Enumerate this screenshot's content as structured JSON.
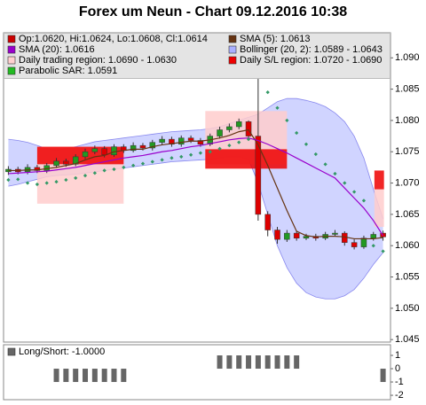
{
  "chart_data": [
    {
      "type": "candlestick",
      "title": "Forex um Neun - Chart 09.12.2016 10:38",
      "legend": [
        {
          "label": "Op:1.0620, Hi:1.0624, Lo:1.0608, Cl:1.0614",
          "color": "#cc0000"
        },
        {
          "label": "SMA (5): 1.0613",
          "color": "#663311"
        },
        {
          "label": "SMA (20): 1.0616",
          "color": "#9900cc"
        },
        {
          "label": "Bollinger (20, 2): 1.0589 - 1.0643",
          "color": "#aab0ff"
        },
        {
          "label": "Daily trading region: 1.0690 - 1.0630",
          "color": "#ffd0d0"
        },
        {
          "label": "Daily S/L region: 1.0720 - 1.0690",
          "color": "#ee0000"
        },
        {
          "label": "Parabolic SAR: 1.0591",
          "color": "#22bb22"
        }
      ],
      "open": [
        1.0718,
        1.0722,
        1.0718,
        1.0725,
        1.072,
        1.0728,
        1.0735,
        1.073,
        1.0742,
        1.075,
        1.0755,
        1.0745,
        1.0758,
        1.0752,
        1.076,
        1.0756,
        1.0765,
        1.077,
        1.0762,
        1.0772,
        1.0768,
        1.0762,
        1.0775,
        1.0785,
        1.079,
        1.0798,
        1.0775,
        1.065,
        1.0625,
        1.061,
        1.062,
        1.0612,
        1.0615,
        1.0612,
        1.0618,
        1.062,
        1.0605,
        1.0598,
        1.0612,
        1.062
      ],
      "high": [
        1.0727,
        1.0726,
        1.073,
        1.0729,
        1.0732,
        1.074,
        1.0739,
        1.0746,
        1.0755,
        1.076,
        1.0759,
        1.0762,
        1.0762,
        1.0765,
        1.0764,
        1.0769,
        1.0775,
        1.0774,
        1.0776,
        1.0776,
        1.0772,
        1.0779,
        1.079,
        1.0795,
        1.0803,
        1.08,
        1.087,
        1.0655,
        1.063,
        1.0625,
        1.0624,
        1.0619,
        1.0619,
        1.0622,
        1.0625,
        1.0623,
        1.061,
        1.0616,
        1.0622,
        1.0624
      ],
      "low": [
        1.0713,
        1.0714,
        1.0714,
        1.0716,
        1.0716,
        1.0724,
        1.0726,
        1.0727,
        1.0738,
        1.0746,
        1.0741,
        1.0742,
        1.0748,
        1.0749,
        1.0752,
        1.0752,
        1.0761,
        1.0758,
        1.0758,
        1.0764,
        1.0758,
        1.0759,
        1.0771,
        1.0781,
        1.0786,
        1.077,
        1.064,
        1.0615,
        1.0603,
        1.0606,
        1.0608,
        1.0609,
        1.0608,
        1.0609,
        1.0615,
        1.06,
        1.0594,
        1.0595,
        1.0608,
        1.0608
      ],
      "close": [
        1.0722,
        1.0718,
        1.0725,
        1.072,
        1.0728,
        1.0735,
        1.073,
        1.0742,
        1.075,
        1.0755,
        1.0745,
        1.0758,
        1.0752,
        1.076,
        1.0756,
        1.0765,
        1.077,
        1.0762,
        1.0772,
        1.0768,
        1.0762,
        1.0775,
        1.0785,
        1.079,
        1.0798,
        1.0775,
        1.065,
        1.0625,
        1.061,
        1.062,
        1.0612,
        1.0615,
        1.0612,
        1.0618,
        1.062,
        1.0605,
        1.0598,
        1.0612,
        1.0618,
        1.0614
      ],
      "up_color": "#229922",
      "down_color": "#dd0000",
      "band": {
        "color": "#aab0ff",
        "upper": [
          1.077,
          1.0768,
          1.0765,
          1.076,
          1.0755,
          1.0752,
          1.0755,
          1.0758,
          1.0762,
          1.0766,
          1.0768,
          1.077,
          1.0772,
          1.0774,
          1.0776,
          1.0778,
          1.078,
          1.0782,
          1.0783,
          1.0784,
          1.0785,
          1.0787,
          1.079,
          1.0795,
          1.08,
          1.0805,
          1.081,
          1.082,
          1.083,
          1.0835,
          1.0835,
          1.0832,
          1.0828,
          1.0822,
          1.0812,
          1.0798,
          1.0775,
          1.074,
          1.069,
          1.0643
        ],
        "lower": [
          1.0695,
          1.0698,
          1.0702,
          1.0706,
          1.071,
          1.0712,
          1.0713,
          1.0714,
          1.0716,
          1.0718,
          1.072,
          1.0722,
          1.0724,
          1.0726,
          1.0728,
          1.073,
          1.0732,
          1.0734,
          1.0735,
          1.0736,
          1.0737,
          1.0738,
          1.074,
          1.0742,
          1.0742,
          1.0738,
          1.07,
          1.065,
          1.06,
          1.0565,
          1.054,
          1.0525,
          1.0518,
          1.0515,
          1.0515,
          1.052,
          1.053,
          1.0548,
          1.057,
          1.0589
        ]
      },
      "lines": [
        {
          "color": "#663311",
          "values": [
            1.072,
            1.072,
            1.0721,
            1.0721,
            1.0723,
            1.0725,
            1.0728,
            1.0731,
            1.0737,
            1.0742,
            1.0744,
            1.075,
            1.0752,
            1.0754,
            1.0754,
            1.0758,
            1.0761,
            1.0763,
            1.0765,
            1.0767,
            1.0767,
            1.0769,
            1.0772,
            1.0776,
            1.0782,
            1.0785,
            1.0761,
            1.0728,
            1.0692,
            1.0656,
            1.0623,
            1.0616,
            1.0614,
            1.0615,
            1.0615,
            1.0614,
            1.0611,
            1.0611,
            1.0611,
            1.0613
          ]
        },
        {
          "color": "#9900cc",
          "values": [
            1.0715,
            1.0716,
            1.0717,
            1.0718,
            1.0719,
            1.0721,
            1.0723,
            1.0725,
            1.0728,
            1.0731,
            1.0734,
            1.0737,
            1.074,
            1.0742,
            1.0744,
            1.0747,
            1.075,
            1.0752,
            1.0755,
            1.0758,
            1.076,
            1.0763,
            1.0766,
            1.0769,
            1.0771,
            1.0772,
            1.0768,
            1.0762,
            1.0755,
            1.0748,
            1.074,
            1.0732,
            1.0724,
            1.0716,
            1.0708,
            1.0692,
            1.0676,
            1.066,
            1.064,
            1.0616
          ]
        }
      ],
      "sar": {
        "color": "#339966",
        "values": [
          1.0705,
          1.0706,
          1.07,
          1.0698,
          1.07,
          1.0702,
          1.0705,
          1.0708,
          1.0712,
          1.0716,
          1.072,
          1.0722,
          1.0725,
          1.0728,
          1.0731,
          1.0734,
          1.0737,
          1.074,
          1.0742,
          1.0745,
          1.0748,
          1.075,
          1.0755,
          1.076,
          1.0765,
          1.077,
          1.087,
          1.0845,
          1.082,
          1.08,
          1.078,
          1.0762,
          1.0746,
          1.073,
          1.0715,
          1.07,
          1.0686,
          1.0672,
          1.06,
          1.0591
        ]
      },
      "regions": [
        {
          "start": 3.5,
          "end": 12.5,
          "high": 1.0758,
          "low": 1.0667,
          "color": "#ffcccc"
        },
        {
          "start": 3.5,
          "end": 12.5,
          "high": 1.0758,
          "low": 1.073,
          "color": "#ee0000"
        },
        {
          "start": 21,
          "end": 29.5,
          "high": 1.0815,
          "low": 1.073,
          "color": "#ffcccc"
        },
        {
          "start": 21,
          "end": 29.5,
          "high": 1.0754,
          "low": 1.0723,
          "color": "#ee0000"
        },
        {
          "start": 38.6,
          "end": 39.6,
          "high": 1.069,
          "low": 1.063,
          "color": "#ffcccc"
        },
        {
          "start": 38.6,
          "end": 39.6,
          "high": 1.072,
          "low": 1.069,
          "color": "#ee0000"
        }
      ],
      "ylim": [
        1.0446,
        1.094
      ],
      "yticks": [
        1.045,
        {
          "value": 1.05,
          "label": "1.050"
        },
        1.055,
        {
          "value": 1.06,
          "label": "1.060"
        },
        1.065,
        {
          "value": 1.07,
          "label": "1.070"
        },
        1.075,
        {
          "value": 1.08,
          "label": "1.080"
        },
        1.085,
        {
          "value": 1.09,
          "label": "1.090"
        }
      ]
    },
    {
      "type": "bar",
      "legend": [
        {
          "label": "Long/Short: -1.0000",
          "color": "#666666"
        }
      ],
      "color": "#666666",
      "values": [
        0,
        0,
        0,
        0,
        0,
        -1,
        -1,
        -1,
        -1,
        -1,
        -1,
        -1,
        -1,
        0,
        0,
        0,
        0,
        0,
        0,
        0,
        0,
        0,
        1,
        1,
        1,
        1,
        1,
        1,
        1,
        1,
        1,
        0,
        0,
        0,
        0,
        0,
        0,
        0,
        0,
        -1
      ],
      "ylim": [
        -2.33,
        1.8
      ],
      "yticks": [
        1,
        0,
        -1,
        -2
      ]
    }
  ]
}
